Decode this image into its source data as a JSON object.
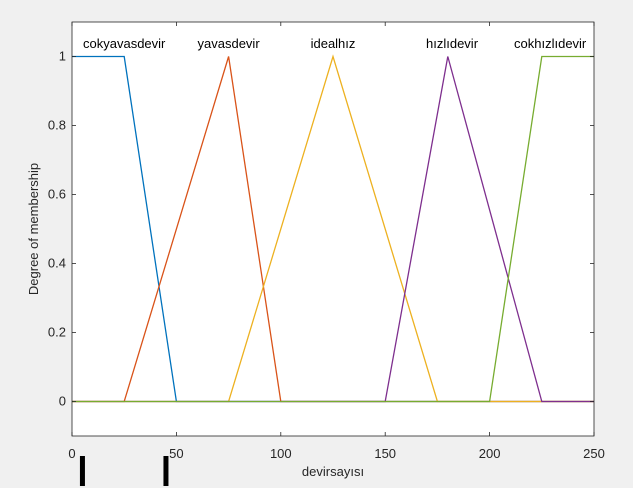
{
  "chart_data": {
    "type": "line",
    "title": "",
    "xlabel": "devirsayısı",
    "ylabel": "Degree of membership",
    "xlim": [
      0,
      250
    ],
    "ylim": [
      -0.1,
      1.1
    ],
    "xticks": [
      0,
      50,
      100,
      150,
      200,
      250
    ],
    "yticks": [
      0,
      0.2,
      0.4,
      0.6,
      0.8,
      1
    ],
    "xtick_labels": [
      "0",
      "50",
      "100",
      "150",
      "200",
      "250"
    ],
    "ytick_labels": [
      "0",
      "0.2",
      "0.4",
      "0.6",
      "0.8",
      "1"
    ],
    "grid": false,
    "series": [
      {
        "name": "cokyavasdevir",
        "color": "#0072bd",
        "x": [
          0,
          25,
          50,
          250
        ],
        "y": [
          1,
          1,
          0,
          0
        ],
        "label_x": 25
      },
      {
        "name": "yavasdevir",
        "color": "#d95319",
        "x": [
          0,
          25,
          75,
          100,
          250
        ],
        "y": [
          0,
          0,
          1,
          0,
          0
        ],
        "label_x": 75
      },
      {
        "name": "idealhız",
        "color": "#edb120",
        "x": [
          0,
          75,
          125,
          175,
          250
        ],
        "y": [
          0,
          0,
          1,
          0,
          0
        ],
        "label_x": 125
      },
      {
        "name": "hızlıdevir",
        "color": "#7e2f8e",
        "x": [
          0,
          150,
          180,
          225,
          250
        ],
        "y": [
          0,
          0,
          1,
          0,
          0
        ],
        "label_x": 182
      },
      {
        "name": "cokhızlıdevir",
        "color": "#77ac30",
        "x": [
          0,
          200,
          225,
          250
        ],
        "y": [
          0,
          0,
          1,
          1
        ],
        "label_x": 229
      }
    ]
  }
}
